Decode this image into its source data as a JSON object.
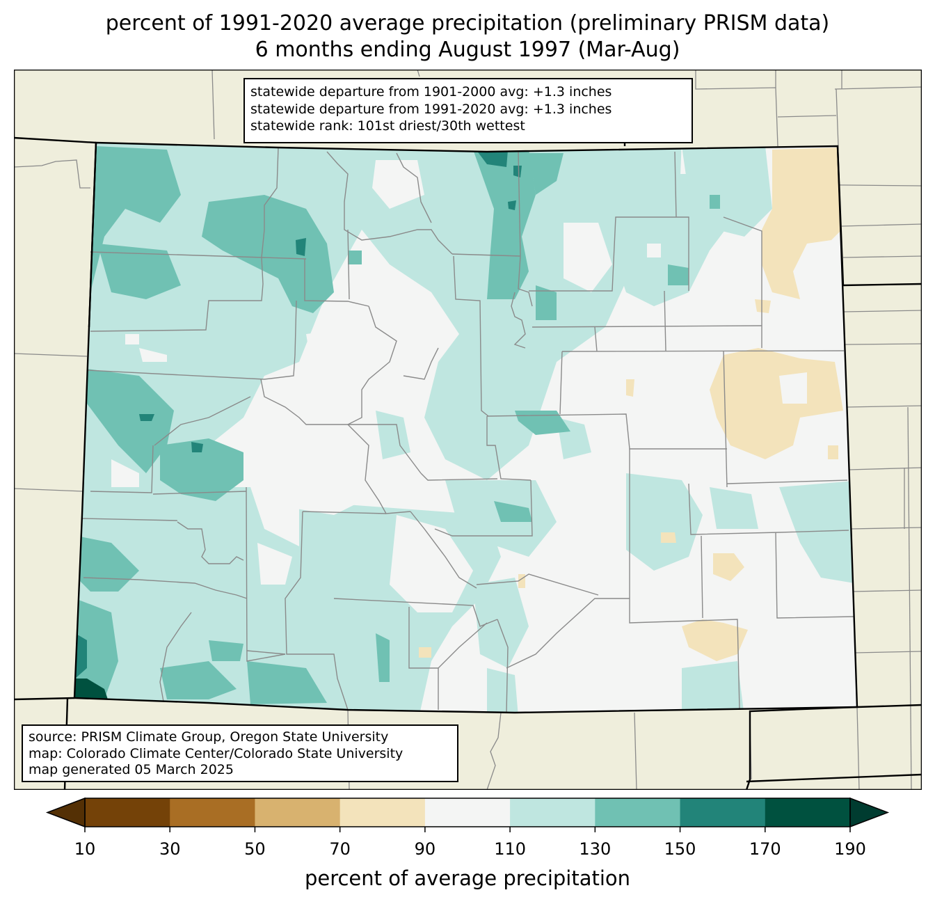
{
  "title": {
    "line1": "percent of 1991-2020 average precipitation (preliminary PRISM data)",
    "line2": "6 months ending August 1997 (Mar-Aug)"
  },
  "stats_box": {
    "line1": "statewide departure from 1901-2000 avg: +1.3 inches",
    "line2": "statewide departure from 1991-2020 avg: +1.3 inches",
    "line3": "statewide rank: 101st driest/30th wettest"
  },
  "source_box": {
    "line1": "source: PRISM Climate Group, Oregon State University",
    "line2": "map: Colorado Climate Center/Colorado State University",
    "line3": "map generated 05 March 2025"
  },
  "colors": {
    "background_land": "#efeedc",
    "state_fill": "#f4f5f4",
    "bin_10_30": "#744208",
    "bin_30_50": "#a96e24",
    "bin_50_70": "#d8b26f",
    "bin_70_90": "#f3e3bb",
    "bin_90_110": "#f4f5f4",
    "bin_110_130": "#bfe6e0",
    "bin_130_150": "#70c1b3",
    "bin_150_170": "#228479",
    "bin_170_190": "#00513f",
    "under": "#543005",
    "over": "#003c30"
  },
  "colorbar": {
    "label": "percent of average precipitation",
    "ticks": [
      "10",
      "30",
      "50",
      "70",
      "90",
      "110",
      "130",
      "150",
      "170",
      "190"
    ],
    "bins": [
      "#744208",
      "#a96e24",
      "#d8b26f",
      "#f3e3bb",
      "#f4f5f4",
      "#bfe6e0",
      "#70c1b3",
      "#228479",
      "#00513f"
    ],
    "under_color": "#543005",
    "over_color": "#003c30"
  }
}
